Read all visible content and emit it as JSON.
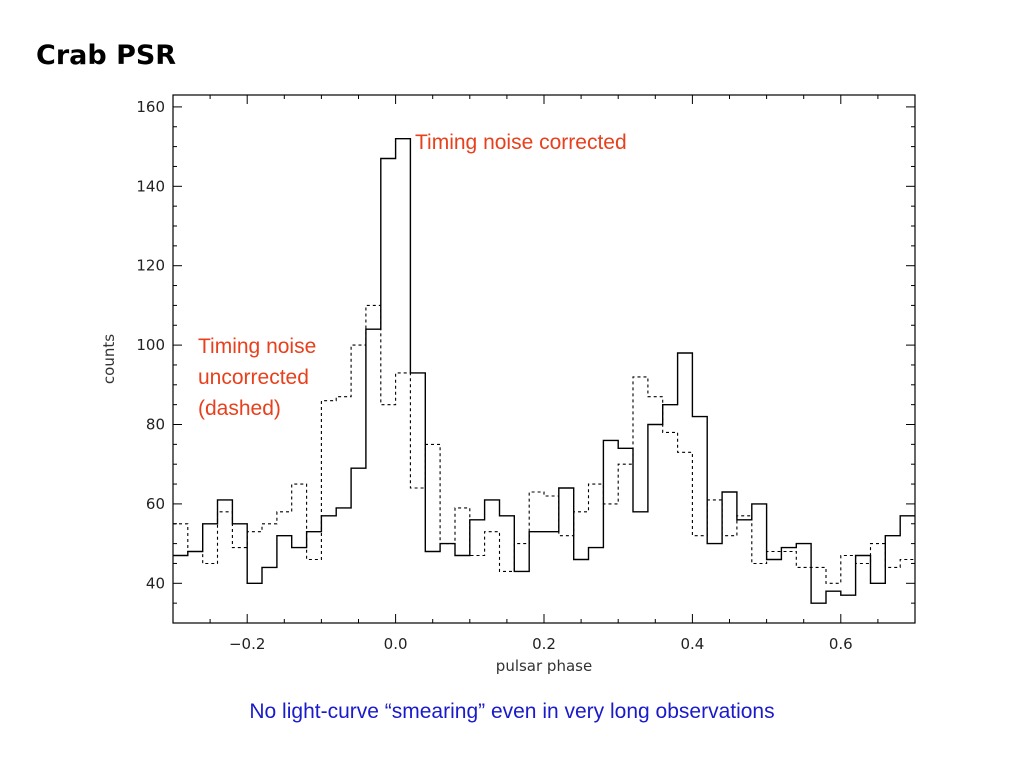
{
  "slide": {
    "title": "Crab PSR",
    "caption": "No light-curve “smearing” even in very long observations"
  },
  "colors": {
    "annotation": "#e8401c",
    "caption": "#1a1acc",
    "axis": "#000000"
  },
  "chart_data": {
    "type": "line",
    "subtype": "step-histogram",
    "xlabel": "pulsar phase",
    "ylabel": "counts",
    "xlim": [
      -0.3,
      0.7
    ],
    "ylim": [
      30,
      163
    ],
    "xticks": [
      -0.2,
      0.0,
      0.2,
      0.4,
      0.6
    ],
    "xtick_labels": [
      "−0.2",
      "0.0",
      "0.2",
      "0.4",
      "0.6"
    ],
    "yticks": [
      40,
      60,
      80,
      100,
      120,
      140,
      160
    ],
    "ytick_labels": [
      "40",
      "60",
      "80",
      "100",
      "120",
      "140",
      "160"
    ],
    "bin_edges": [
      -0.3,
      -0.28,
      -0.26,
      -0.24,
      -0.22,
      -0.2,
      -0.18,
      -0.16,
      -0.14,
      -0.12,
      -0.1,
      -0.08,
      -0.06,
      -0.04,
      -0.02,
      0.0,
      0.02,
      0.04,
      0.06,
      0.08,
      0.1,
      0.12,
      0.14,
      0.16,
      0.18,
      0.2,
      0.22,
      0.24,
      0.26,
      0.28,
      0.3,
      0.32,
      0.34,
      0.36,
      0.38,
      0.4,
      0.42,
      0.44,
      0.46,
      0.48,
      0.5,
      0.52,
      0.54,
      0.56,
      0.58,
      0.6,
      0.62,
      0.64,
      0.66,
      0.68,
      0.7
    ],
    "series": [
      {
        "name": "Timing noise corrected",
        "style": "solid",
        "values": [
          47,
          48,
          55,
          61,
          55,
          40,
          44,
          52,
          49,
          53,
          57,
          59,
          69,
          104,
          147,
          152,
          93,
          48,
          50,
          47,
          56,
          61,
          57,
          43,
          53,
          53,
          64,
          46,
          49,
          76,
          74,
          58,
          80,
          85,
          98,
          82,
          50,
          63,
          56,
          60,
          46,
          49,
          50,
          35,
          38,
          37,
          47,
          40,
          52,
          57
        ]
      },
      {
        "name": "Timing noise uncorrected (dashed)",
        "style": "dashed",
        "values": [
          55,
          48,
          45,
          58,
          49,
          53,
          55,
          58,
          65,
          46,
          86,
          87,
          100,
          110,
          85,
          93,
          64,
          75,
          50,
          59,
          47,
          53,
          43,
          50,
          63,
          62,
          52,
          58,
          65,
          60,
          70,
          92,
          87,
          78,
          73,
          52,
          61,
          52,
          57,
          45,
          48,
          48,
          44,
          44,
          40,
          47,
          45,
          50,
          44,
          46
        ]
      }
    ],
    "annotations": [
      {
        "text": "Timing noise corrected"
      },
      {
        "lines": [
          "Timing noise",
          "uncorrected",
          "(dashed)"
        ]
      }
    ]
  }
}
